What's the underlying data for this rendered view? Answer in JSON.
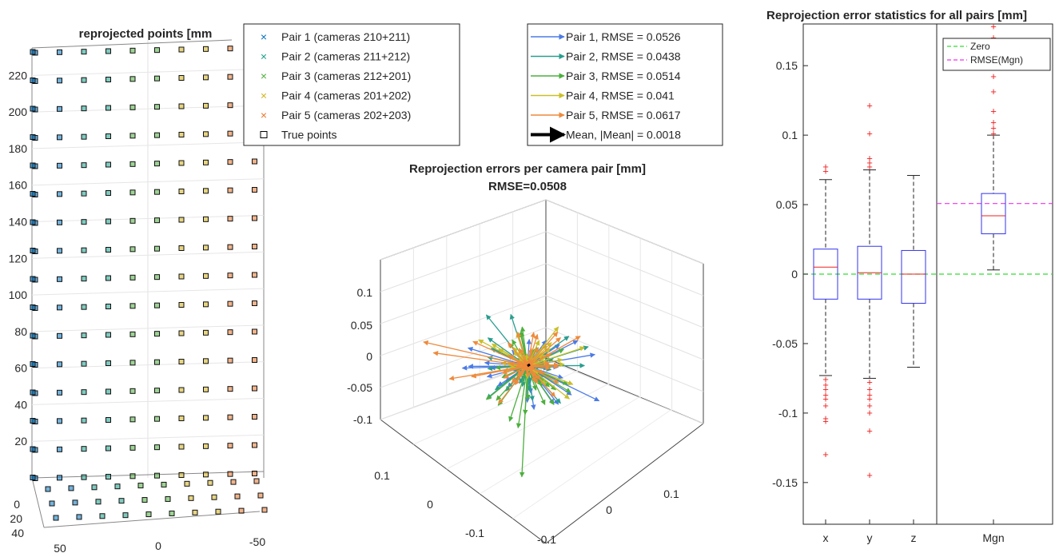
{
  "chart_data": [
    {
      "type": "scatter",
      "title": "reprojected points [mm",
      "zticks": [
        "20",
        "40",
        "60",
        "80",
        "100",
        "120",
        "140",
        "160",
        "180",
        "200",
        "220"
      ],
      "zlim": [
        0,
        235
      ],
      "yticks": [
        "0",
        "20",
        "40"
      ],
      "xticks": [
        "50",
        "0",
        "-50"
      ],
      "grid_rows": 16,
      "grid_cols": 10,
      "series": [
        {
          "name": "Pair 1 (cameras 210+211)",
          "marker": "x",
          "color": "#0072BD"
        },
        {
          "name": "Pair 2 (cameras 211+212)",
          "marker": "x",
          "color": "#17A08A"
        },
        {
          "name": "Pair 3 (cameras 212+201)",
          "marker": "x",
          "color": "#4DB03A"
        },
        {
          "name": "Pair 4 (cameras 201+202)",
          "marker": "x",
          "color": "#D4B21C"
        },
        {
          "name": "Pair 5 (cameras 202+203)",
          "marker": "x",
          "color": "#E8772A"
        },
        {
          "name": "True points",
          "marker": "square",
          "color": "#000000"
        }
      ],
      "legend": "top-right"
    },
    {
      "type": "quiver3",
      "title": "Reprojection errors per camera pair [mm]",
      "subtitle": "RMSE=0.0508",
      "zticks": [
        "0.1",
        "0.05",
        "0",
        "-0.05",
        "-0.1"
      ],
      "xticks": [
        "0.1",
        "0",
        "-0.1"
      ],
      "yticks": [
        "-0.1",
        "0",
        "0.1"
      ],
      "series": [
        {
          "name": "Pair 1, RMSE = 0.0526",
          "rmse": 0.0526,
          "color": "#4C7BE5"
        },
        {
          "name": "Pair 2, RMSE = 0.0438",
          "rmse": 0.0438,
          "color": "#2A9D8F"
        },
        {
          "name": "Pair 3, RMSE = 0.0514",
          "rmse": 0.0514,
          "color": "#4CAF3E"
        },
        {
          "name": "Pair 4, RMSE = 0.041",
          "rmse": 0.041,
          "color": "#C9C02A"
        },
        {
          "name": "Pair 5, RMSE = 0.0617",
          "rmse": 0.0617,
          "color": "#EE8A3C"
        },
        {
          "name": "Mean, |Mean| = 0.0018",
          "mean_magnitude": 0.0018,
          "color": "#000000"
        }
      ],
      "legend": "top"
    },
    {
      "type": "box",
      "title": "Reprojection error statistics for all pairs [mm]",
      "categories": [
        "x",
        "y",
        "z",
        "Mgn"
      ],
      "ylim": [
        -0.18,
        0.18
      ],
      "yticks": [
        "0.15",
        "0.1",
        "0.05",
        "0",
        "-0.05",
        "-0.1",
        "-0.15"
      ],
      "boxes": [
        {
          "label": "x",
          "min": -0.073,
          "q1": -0.018,
          "median": 0.005,
          "q3": 0.018,
          "max": 0.068,
          "outliers": [
            0.077,
            0.074,
            -0.076,
            -0.08,
            -0.083,
            -0.087,
            -0.09,
            -0.095,
            -0.104,
            -0.106,
            -0.13
          ]
        },
        {
          "label": "y",
          "min": -0.075,
          "q1": -0.018,
          "median": 0.001,
          "q3": 0.02,
          "max": 0.075,
          "outliers": [
            0.121,
            0.101,
            0.083,
            0.08,
            0.077,
            -0.078,
            -0.083,
            -0.087,
            -0.09,
            -0.095,
            -0.1,
            -0.113,
            -0.145
          ]
        },
        {
          "label": "z",
          "min": -0.067,
          "q1": -0.021,
          "median": 0.0,
          "q3": 0.017,
          "max": 0.071,
          "outliers": []
        },
        {
          "label": "Mgn",
          "min": 0.003,
          "q1": 0.029,
          "median": 0.042,
          "q3": 0.058,
          "max": 0.1,
          "outliers": [
            0.178,
            0.17,
            0.152,
            0.142,
            0.131,
            0.117,
            0.109,
            0.105,
            0.101
          ]
        }
      ],
      "reference_lines": [
        {
          "name": "Zero",
          "value": 0,
          "color": "#33DD33",
          "style": "dashed"
        },
        {
          "name": "RMSE(Mgn)",
          "value": 0.0508,
          "color": "#EE33EE",
          "style": "dashed"
        }
      ],
      "legend": "top-right"
    }
  ]
}
